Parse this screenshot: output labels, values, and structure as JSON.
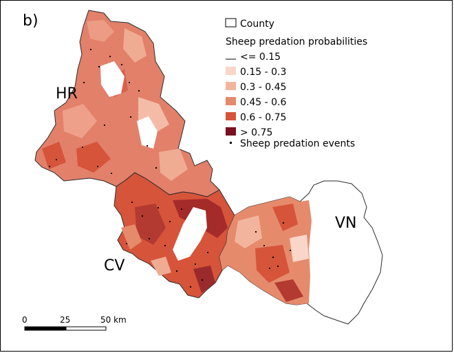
{
  "panel_label": "b)",
  "counties": [
    {
      "label": "HR"
    },
    {
      "label": "CV"
    },
    {
      "label": "VN"
    }
  ],
  "legend": {
    "county_label": "County",
    "title": "Sheep predation probabilities",
    "classes": [
      {
        "label": "<= 0.15",
        "color": "#ffffff"
      },
      {
        "label": "0.15 - 0.3",
        "color": "#f9d6c8"
      },
      {
        "label": "0.3 - 0.45",
        "color": "#f2b49d"
      },
      {
        "label": "0.45 - 0.6",
        "color": "#e68a6c"
      },
      {
        "label": "0.6 - 0.75",
        "color": "#d6543a"
      },
      {
        "label": "> 0.75",
        "color": "#7a1020"
      }
    ],
    "events_label": "Sheep predation events"
  },
  "scale_bar": {
    "ticks": [
      "0",
      "25",
      "50 km"
    ]
  }
}
